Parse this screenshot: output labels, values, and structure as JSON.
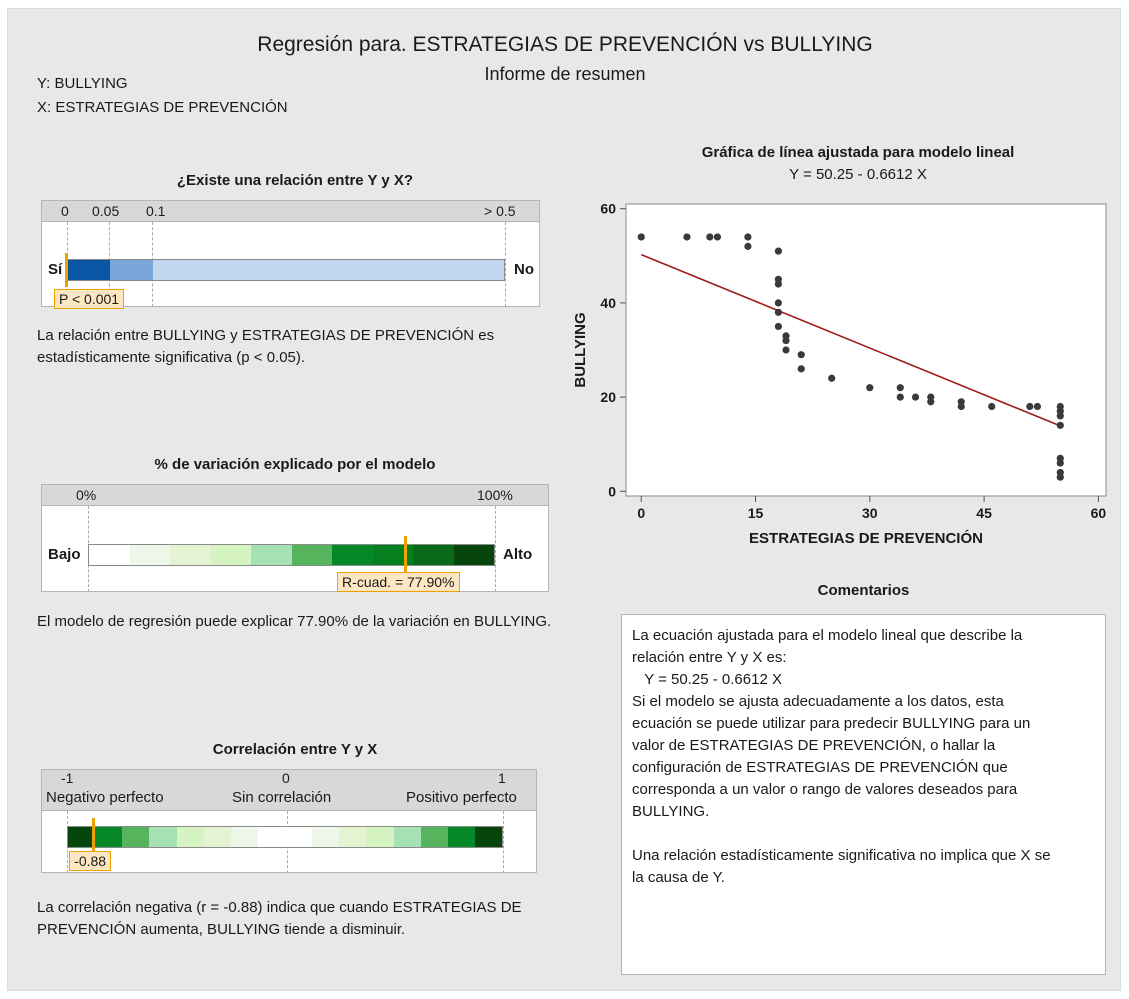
{
  "header": {
    "title": "Regresión para. ESTRATEGIAS DE PREVENCIÓN vs BULLYING",
    "subtitle": "Informe de resumen",
    "y_var": "Y: BULLYING",
    "x_var": "X: ESTRATEGIAS DE PREVENCIÓN"
  },
  "relation": {
    "title": "¿Existe una relación entre Y y X?",
    "ticks": [
      "0",
      "0.05",
      "0.1",
      "> 0.5"
    ],
    "left_label": "Sí",
    "right_label": "No",
    "p_label": "P < 0.001",
    "description": "La relación entre BULLYING y ESTRATEGIAS DE PREVENCIÓN es estadísticamente significativa (p < 0.05).",
    "colors": [
      "#0a56a5",
      "#7aa6db",
      "#c3d6ef"
    ]
  },
  "variation": {
    "title": "% de variación explicado por el modelo",
    "tick_min": "0%",
    "tick_max": "100%",
    "left_label": "Bajo",
    "right_label": "Alto",
    "r2_label": "R-cuad. = 77.90%",
    "r2_value": 77.9,
    "description": "El modelo de regresión puede explicar 77.90% de la variación en BULLYING.",
    "colors": [
      "#ffffff",
      "#eef6ea",
      "#e4f4d2",
      "#d6f4c2",
      "#a6e1b6",
      "#56b45c",
      "#078828",
      "#06801f",
      "#0b6a19",
      "#06450c"
    ]
  },
  "correlation": {
    "title": "Correlación entre Y y X",
    "tick_min": "-1",
    "tick_mid": "0",
    "tick_max": "1",
    "neg_label": "Negativo perfecto",
    "none_label": "Sin correlación",
    "pos_label": "Positivo perfecto",
    "r_label": "-0.88",
    "r_value": -0.88,
    "description": "La correlación negativa (r = -0.88) indica que cuando ESTRATEGIAS DE PREVENCIÓN aumenta, BULLYING tiende a disminuir.",
    "colors": [
      "#06450c",
      "#078828",
      "#56b45c",
      "#a6e1b6",
      "#d6f4c2",
      "#e4f4d2",
      "#eef6ea",
      "#ffffff",
      "#ffffff",
      "#eef6ea",
      "#e4f4d2",
      "#d6f4c2",
      "#a6e1b6",
      "#56b45c",
      "#078828",
      "#06450c"
    ]
  },
  "chart_data": {
    "type": "scatter",
    "title": "Gráfica de línea ajustada para modelo lineal",
    "subtitle": "Y = 50.25 - 0.6612 X",
    "xlabel": "ESTRATEGIAS DE PREVENCIÓN",
    "ylabel": "BULLYING",
    "xlim": [
      -2,
      61
    ],
    "ylim": [
      -1,
      61
    ],
    "xticks": [
      0,
      15,
      30,
      45,
      60
    ],
    "yticks": [
      0,
      20,
      40,
      60
    ],
    "x_tick_labels": [
      "0",
      "15",
      "30",
      "45",
      "60"
    ],
    "y_tick_labels": [
      "0",
      "20",
      "40",
      "60"
    ],
    "grid": false,
    "point_color": "#3a3a3a",
    "fit_color": "#a01c1c",
    "fit": {
      "intercept": 50.25,
      "slope": -0.6612,
      "x_range": [
        0,
        55
      ]
    },
    "points": [
      [
        0,
        54
      ],
      [
        6,
        54
      ],
      [
        9,
        54
      ],
      [
        10,
        54
      ],
      [
        14,
        54
      ],
      [
        14,
        52
      ],
      [
        18,
        51
      ],
      [
        18,
        45
      ],
      [
        18,
        44
      ],
      [
        18,
        40
      ],
      [
        18,
        38
      ],
      [
        18,
        35
      ],
      [
        19,
        33
      ],
      [
        19,
        32
      ],
      [
        19,
        30
      ],
      [
        21,
        29
      ],
      [
        21,
        26
      ],
      [
        25,
        24
      ],
      [
        30,
        22
      ],
      [
        34,
        22
      ],
      [
        34,
        20
      ],
      [
        36,
        20
      ],
      [
        38,
        20
      ],
      [
        38,
        19
      ],
      [
        42,
        19
      ],
      [
        42,
        18
      ],
      [
        46,
        18
      ],
      [
        51,
        18
      ],
      [
        52,
        18
      ],
      [
        55,
        18
      ],
      [
        55,
        17
      ],
      [
        55,
        16
      ],
      [
        55,
        14
      ],
      [
        55,
        7
      ],
      [
        55,
        6
      ],
      [
        55,
        4
      ],
      [
        55,
        3
      ]
    ]
  },
  "comments": {
    "title": "Comentarios",
    "lines": [
      "La ecuación ajustada para el modelo lineal que describe la",
      "relación entre Y y X es:",
      "   Y = 50.25 - 0.6612 X",
      "Si el modelo se ajusta adecuadamente a los datos, esta",
      "ecuación se puede utilizar para predecir BULLYING para un",
      "valor de ESTRATEGIAS DE PREVENCIÓN, o hallar la",
      "configuración de ESTRATEGIAS DE PREVENCIÓN que",
      "corresponda a un valor o rango de valores deseados para",
      "BULLYING.",
      "",
      "Una relación estadísticamente significativa no implica que X se",
      "la causa de Y."
    ]
  }
}
